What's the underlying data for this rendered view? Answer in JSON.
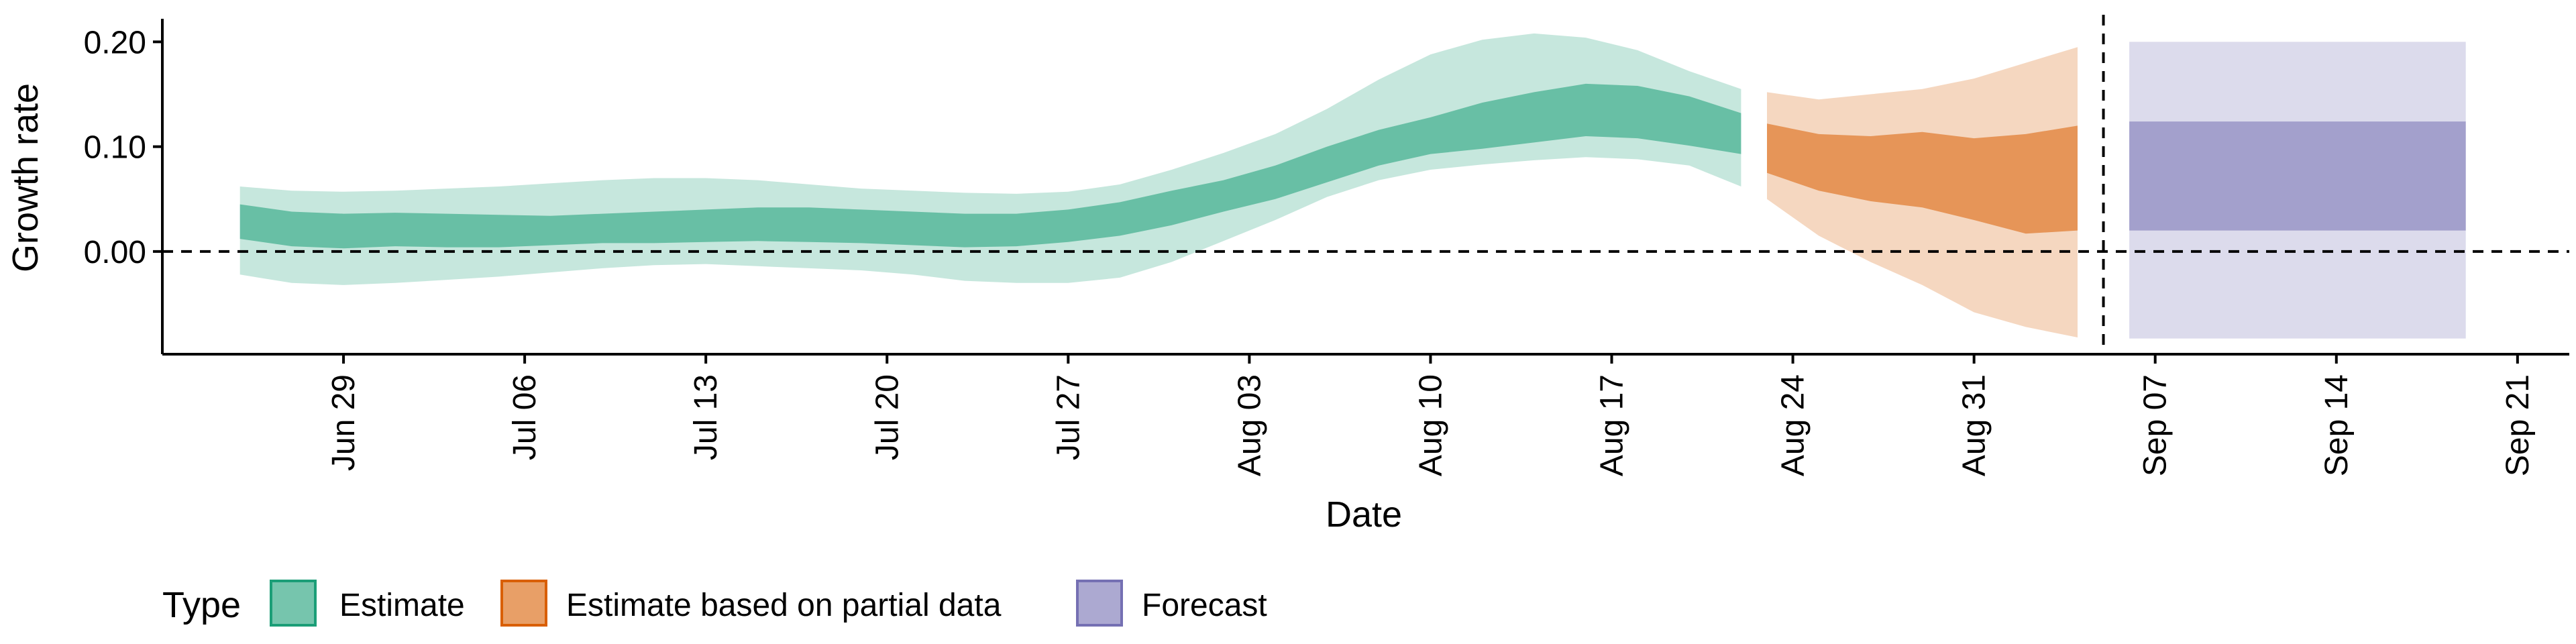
{
  "chart_data": {
    "type": "area",
    "xlabel": "Date",
    "ylabel": "Growth rate",
    "ylim": [
      -0.098,
      0.222
    ],
    "x_tick_labels": [
      "Jun 29",
      "Jul 06",
      "Jul 13",
      "Jul 20",
      "Jul 27",
      "Aug 03",
      "Aug 10",
      "Aug 17",
      "Aug 24",
      "Aug 31",
      "Sep 07",
      "Sep 14",
      "Sep 21"
    ],
    "x_tick_dates": [
      "2020-06-29",
      "2020-07-06",
      "2020-07-13",
      "2020-07-20",
      "2020-07-27",
      "2020-08-03",
      "2020-08-10",
      "2020-08-17",
      "2020-08-24",
      "2020-08-31",
      "2020-09-07",
      "2020-09-14",
      "2020-09-21"
    ],
    "y_ticks": [
      0.0,
      0.1,
      0.2
    ],
    "y_tick_labels": [
      "0.00",
      "0.10",
      "0.20"
    ],
    "reference_lines": {
      "y": 0.0,
      "x": "2020-09-05"
    },
    "legend": {
      "title": "Type",
      "position": "bottom-left"
    },
    "series": [
      {
        "name": "Estimate",
        "color": "#1b9e77",
        "dates": [
          "2020-06-25",
          "2020-06-27",
          "2020-06-29",
          "2020-07-01",
          "2020-07-03",
          "2020-07-05",
          "2020-07-07",
          "2020-07-09",
          "2020-07-11",
          "2020-07-13",
          "2020-07-15",
          "2020-07-17",
          "2020-07-19",
          "2020-07-21",
          "2020-07-23",
          "2020-07-25",
          "2020-07-27",
          "2020-07-29",
          "2020-07-31",
          "2020-08-02",
          "2020-08-04",
          "2020-08-06",
          "2020-08-08",
          "2020-08-10",
          "2020-08-12",
          "2020-08-14",
          "2020-08-16",
          "2020-08-18",
          "2020-08-20",
          "2020-08-22"
        ],
        "inner_lower": [
          0.012,
          0.005,
          0.003,
          0.005,
          0.004,
          0.004,
          0.006,
          0.008,
          0.008,
          0.009,
          0.01,
          0.009,
          0.008,
          0.006,
          0.004,
          0.005,
          0.009,
          0.015,
          0.025,
          0.038,
          0.05,
          0.066,
          0.082,
          0.093,
          0.098,
          0.104,
          0.11,
          0.108,
          0.101,
          0.093
        ],
        "inner_upper": [
          0.045,
          0.038,
          0.036,
          0.037,
          0.036,
          0.035,
          0.034,
          0.036,
          0.038,
          0.04,
          0.042,
          0.042,
          0.04,
          0.038,
          0.036,
          0.036,
          0.04,
          0.047,
          0.058,
          0.068,
          0.082,
          0.1,
          0.116,
          0.128,
          0.142,
          0.152,
          0.16,
          0.158,
          0.148,
          0.132
        ],
        "outer_lower": [
          -0.022,
          -0.03,
          -0.032,
          -0.03,
          -0.027,
          -0.024,
          -0.02,
          -0.016,
          -0.013,
          -0.012,
          -0.014,
          -0.016,
          -0.018,
          -0.022,
          -0.028,
          -0.03,
          -0.03,
          -0.025,
          -0.01,
          0.01,
          0.03,
          0.052,
          0.068,
          0.078,
          0.083,
          0.087,
          0.09,
          0.088,
          0.082,
          0.062
        ],
        "outer_upper": [
          0.062,
          0.058,
          0.057,
          0.058,
          0.06,
          0.062,
          0.065,
          0.068,
          0.07,
          0.07,
          0.068,
          0.064,
          0.06,
          0.058,
          0.056,
          0.055,
          0.057,
          0.064,
          0.078,
          0.094,
          0.112,
          0.136,
          0.164,
          0.188,
          0.202,
          0.208,
          0.204,
          0.192,
          0.172,
          0.155
        ]
      },
      {
        "name": "Estimate based on partial data",
        "color": "#d95f02",
        "dates": [
          "2020-08-23",
          "2020-08-25",
          "2020-08-27",
          "2020-08-29",
          "2020-08-31",
          "2020-09-02",
          "2020-09-04"
        ],
        "inner_lower": [
          0.075,
          0.058,
          0.048,
          0.042,
          0.03,
          0.017,
          0.02
        ],
        "inner_upper": [
          0.122,
          0.112,
          0.11,
          0.114,
          0.108,
          0.112,
          0.12
        ],
        "outer_lower": [
          0.05,
          0.015,
          -0.01,
          -0.032,
          -0.058,
          -0.072,
          -0.082
        ],
        "outer_upper": [
          0.152,
          0.145,
          0.15,
          0.155,
          0.165,
          0.18,
          0.195
        ]
      },
      {
        "name": "Forecast",
        "color": "#7570b3",
        "dates": [
          "2020-09-06",
          "2020-09-19"
        ],
        "inner_lower": [
          0.02,
          0.02
        ],
        "inner_upper": [
          0.124,
          0.124
        ],
        "outer_lower": [
          -0.083,
          -0.083
        ],
        "outer_upper": [
          0.2,
          0.2
        ]
      }
    ]
  }
}
